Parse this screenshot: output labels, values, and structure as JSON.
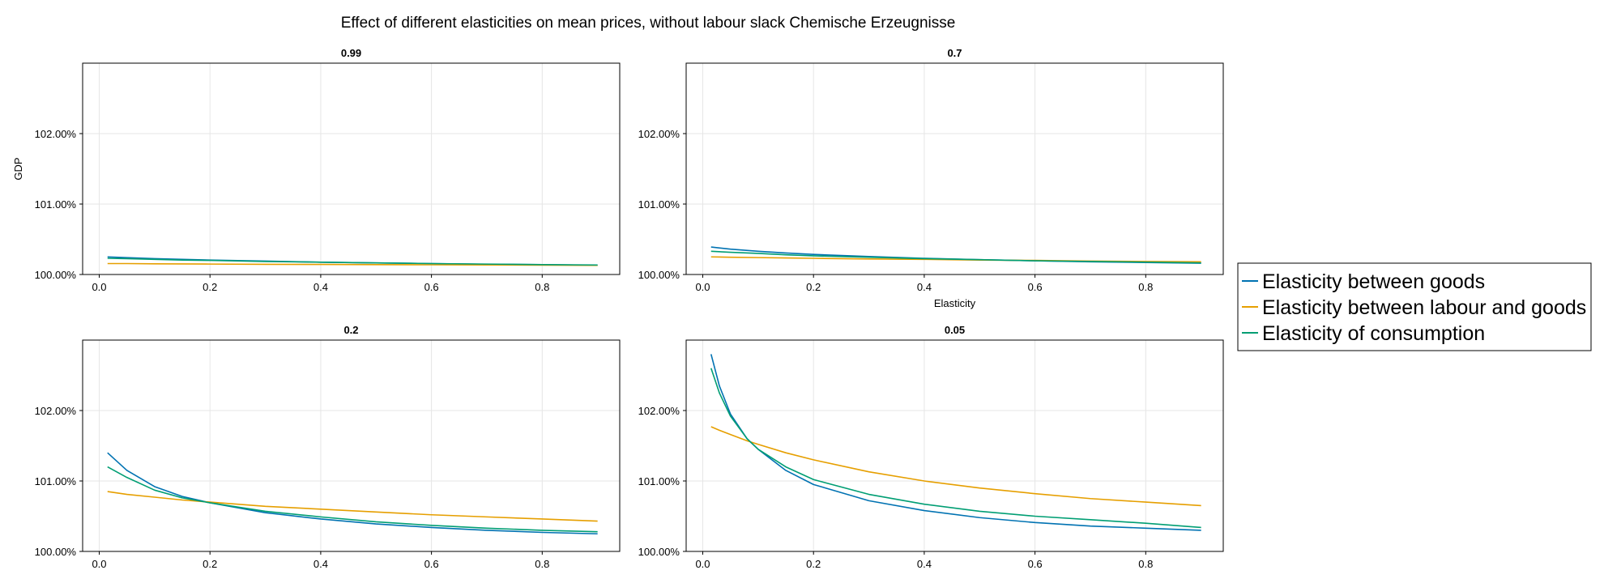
{
  "figure": {
    "title": "Effect of different elasticities on mean prices, without labour slack Chemische Erzeugnisse"
  },
  "legend": {
    "placement": "right",
    "items": [
      {
        "label": "Elasticity between goods",
        "color": "#0072b2"
      },
      {
        "label": "Elasticity between labour and goods",
        "color": "#e69f00"
      },
      {
        "label": "Elasticity of consumption",
        "color": "#009e73"
      }
    ]
  },
  "chart_data": [
    {
      "type": "line",
      "title": "0.99",
      "xlabel": "",
      "ylabel": "GDP",
      "xlim": [
        -0.03,
        0.94
      ],
      "ylim": [
        100.0,
        103.0
      ],
      "x_ticks": [
        0.0,
        0.2,
        0.4,
        0.6,
        0.8
      ],
      "x_tick_labels": [
        "0.0",
        "0.2",
        "0.4",
        "0.6",
        "0.8"
      ],
      "y_ticks": [
        100.0,
        101.0,
        102.0
      ],
      "y_tick_labels": [
        "100.00%",
        "101.00%",
        "102.00%"
      ],
      "grid": true,
      "x": [
        0.015,
        0.05,
        0.1,
        0.15,
        0.2,
        0.3,
        0.4,
        0.5,
        0.6,
        0.7,
        0.8,
        0.9
      ],
      "series": [
        {
          "name": "Elasticity between goods",
          "color": "#0072b2",
          "values": [
            100.25,
            100.24,
            100.225,
            100.215,
            100.205,
            100.19,
            100.175,
            100.165,
            100.155,
            100.145,
            100.14,
            100.13
          ]
        },
        {
          "name": "Elasticity between labour and goods",
          "color": "#e69f00",
          "values": [
            100.155,
            100.155,
            100.152,
            100.15,
            100.148,
            100.145,
            100.143,
            100.14,
            100.138,
            100.135,
            100.133,
            100.13
          ]
        },
        {
          "name": "Elasticity of consumption",
          "color": "#009e73",
          "values": [
            100.23,
            100.225,
            100.215,
            100.205,
            100.2,
            100.185,
            100.175,
            100.165,
            100.155,
            100.148,
            100.14,
            100.135
          ]
        }
      ]
    },
    {
      "type": "line",
      "title": "0.7",
      "xlabel": "Elasticity",
      "ylabel": "",
      "xlim": [
        -0.03,
        0.94
      ],
      "ylim": [
        100.0,
        103.0
      ],
      "x_ticks": [
        0.0,
        0.2,
        0.4,
        0.6,
        0.8
      ],
      "x_tick_labels": [
        "0.0",
        "0.2",
        "0.4",
        "0.6",
        "0.8"
      ],
      "y_ticks": [
        100.0,
        101.0,
        102.0
      ],
      "y_tick_labels": [
        "100.00%",
        "101.00%",
        "102.00%"
      ],
      "grid": true,
      "x": [
        0.015,
        0.05,
        0.1,
        0.15,
        0.2,
        0.3,
        0.4,
        0.5,
        0.6,
        0.7,
        0.8,
        0.9
      ],
      "series": [
        {
          "name": "Elasticity between goods",
          "color": "#0072b2",
          "values": [
            100.39,
            100.36,
            100.33,
            100.305,
            100.285,
            100.255,
            100.23,
            100.21,
            100.195,
            100.18,
            100.17,
            100.16
          ]
        },
        {
          "name": "Elasticity between labour and goods",
          "color": "#e69f00",
          "values": [
            100.25,
            100.245,
            100.24,
            100.235,
            100.23,
            100.22,
            100.215,
            100.205,
            100.2,
            100.19,
            100.185,
            100.18
          ]
        },
        {
          "name": "Elasticity of consumption",
          "color": "#009e73",
          "values": [
            100.33,
            100.315,
            100.3,
            100.28,
            100.265,
            100.245,
            100.225,
            100.21,
            100.195,
            100.185,
            100.175,
            100.165
          ]
        }
      ]
    },
    {
      "type": "line",
      "title": "0.2",
      "xlabel": "",
      "ylabel": "",
      "xlim": [
        -0.03,
        0.94
      ],
      "ylim": [
        100.0,
        103.0
      ],
      "x_ticks": [
        0.0,
        0.2,
        0.4,
        0.6,
        0.8
      ],
      "x_tick_labels": [
        "0.0",
        "0.2",
        "0.4",
        "0.6",
        "0.8"
      ],
      "y_ticks": [
        100.0,
        101.0,
        102.0
      ],
      "y_tick_labels": [
        "100.00%",
        "101.00%",
        "102.00%"
      ],
      "grid": true,
      "x": [
        0.015,
        0.05,
        0.1,
        0.15,
        0.2,
        0.3,
        0.4,
        0.5,
        0.6,
        0.7,
        0.8,
        0.9
      ],
      "series": [
        {
          "name": "Elasticity between goods",
          "color": "#0072b2",
          "values": [
            101.4,
            101.15,
            100.92,
            100.78,
            100.69,
            100.55,
            100.46,
            100.39,
            100.34,
            100.3,
            100.27,
            100.25
          ]
        },
        {
          "name": "Elasticity between labour and goods",
          "color": "#e69f00",
          "values": [
            100.85,
            100.81,
            100.77,
            100.73,
            100.7,
            100.64,
            100.6,
            100.56,
            100.52,
            100.49,
            100.46,
            100.43
          ]
        },
        {
          "name": "Elasticity of consumption",
          "color": "#009e73",
          "values": [
            101.2,
            101.05,
            100.87,
            100.76,
            100.69,
            100.57,
            100.49,
            100.42,
            100.37,
            100.33,
            100.3,
            100.28
          ]
        }
      ]
    },
    {
      "type": "line",
      "title": "0.05",
      "xlabel": "",
      "ylabel": "",
      "xlim": [
        -0.03,
        0.94
      ],
      "ylim": [
        100.0,
        103.0
      ],
      "x_ticks": [
        0.0,
        0.2,
        0.4,
        0.6,
        0.8
      ],
      "x_tick_labels": [
        "0.0",
        "0.2",
        "0.4",
        "0.6",
        "0.8"
      ],
      "y_ticks": [
        100.0,
        101.0,
        102.0
      ],
      "y_tick_labels": [
        "100.00%",
        "101.00%",
        "102.00%"
      ],
      "grid": true,
      "x": [
        0.015,
        0.03,
        0.05,
        0.08,
        0.1,
        0.15,
        0.2,
        0.3,
        0.4,
        0.5,
        0.6,
        0.7,
        0.8,
        0.9
      ],
      "series": [
        {
          "name": "Elasticity between goods",
          "color": "#0072b2",
          "values": [
            102.8,
            102.35,
            101.95,
            101.6,
            101.45,
            101.15,
            100.95,
            100.72,
            100.58,
            100.48,
            100.41,
            100.36,
            100.33,
            100.3
          ]
        },
        {
          "name": "Elasticity between labour and goods",
          "color": "#e69f00",
          "values": [
            101.77,
            101.72,
            101.66,
            101.57,
            101.52,
            101.4,
            101.3,
            101.13,
            101.0,
            100.9,
            100.82,
            100.75,
            100.7,
            100.65
          ]
        },
        {
          "name": "Elasticity of consumption",
          "color": "#009e73",
          "values": [
            102.6,
            102.25,
            101.92,
            101.6,
            101.45,
            101.2,
            101.02,
            100.81,
            100.67,
            100.57,
            100.5,
            100.45,
            100.4,
            100.34
          ]
        }
      ]
    }
  ]
}
